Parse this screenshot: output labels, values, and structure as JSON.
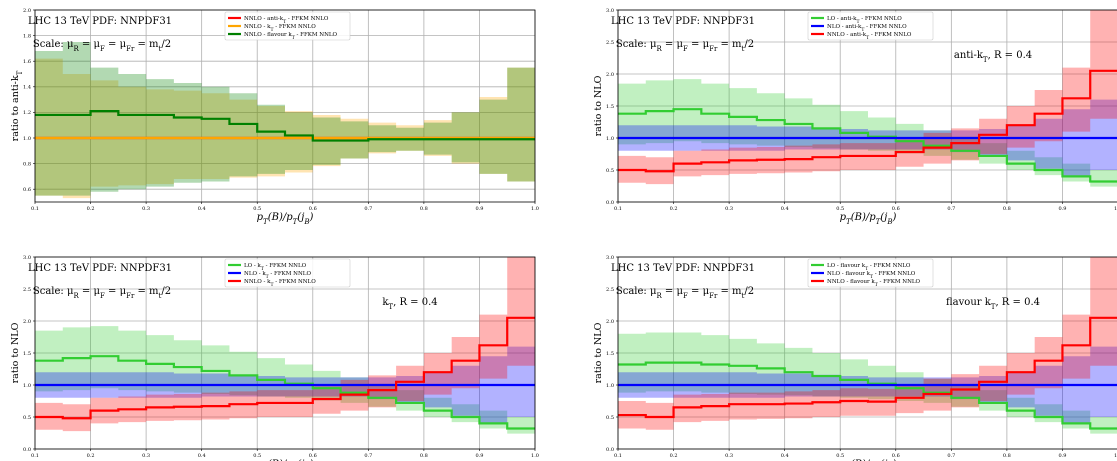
{
  "chart_data": [
    {
      "type": "line",
      "panel": "top-left",
      "xlabel": "p_T(B)/p_T(j_B)",
      "ylabel": "ratio to anti-k_T",
      "xlim": [
        0.1,
        1.0
      ],
      "ylim": [
        0.5,
        2.0
      ],
      "xticks": [
        "0.1",
        "0.2",
        "0.3",
        "0.4",
        "0.5",
        "0.6",
        "0.7",
        "0.8",
        "0.9",
        "1.0"
      ],
      "yticks": [
        "0.6",
        "0.8",
        "1.0",
        "1.2",
        "1.4",
        "1.6",
        "1.8",
        "2.0"
      ],
      "grid": true,
      "annotations": [
        "LHC 13 TeV PDF: NNPDF31",
        "Scale: μ_R = μ_F = μ_Fr = m_t/2"
      ],
      "legend_position": "top-center",
      "x_edges": [
        0.1,
        0.15,
        0.2,
        0.25,
        0.3,
        0.35,
        0.4,
        0.45,
        0.5,
        0.55,
        0.6,
        0.65,
        0.7,
        0.75,
        0.8,
        0.85,
        0.9,
        0.95,
        1.0
      ],
      "series": [
        {
          "name": "NNLO - anti-k_T - FFKM NNLO",
          "color": "#ff0000",
          "values": [
            1.0,
            1.0,
            1.0,
            1.0,
            1.0,
            1.0,
            1.0,
            1.0,
            1.0,
            1.0,
            1.0,
            1.0,
            1.0,
            1.0,
            1.0,
            1.0,
            1.0,
            1.0
          ],
          "lower": [
            1.0,
            1.0,
            1.0,
            1.0,
            1.0,
            1.0,
            1.0,
            1.0,
            1.0,
            1.0,
            1.0,
            1.0,
            1.0,
            1.0,
            1.0,
            1.0,
            1.0,
            1.0
          ],
          "upper": [
            1.0,
            1.0,
            1.0,
            1.0,
            1.0,
            1.0,
            1.0,
            1.0,
            1.0,
            1.0,
            1.0,
            1.0,
            1.0,
            1.0,
            1.0,
            1.0,
            1.0,
            1.0
          ]
        },
        {
          "name": "NNLO - k_T - FFKM NNLO",
          "color": "#ffa500",
          "values": [
            1.0,
            1.0,
            1.0,
            1.0,
            1.0,
            1.0,
            1.0,
            1.0,
            1.0,
            1.0,
            1.0,
            1.0,
            1.0,
            1.0,
            1.0,
            1.0,
            1.0,
            1.0
          ],
          "lower": [
            0.55,
            0.53,
            0.62,
            0.63,
            0.64,
            0.68,
            0.68,
            0.69,
            0.7,
            0.73,
            0.78,
            0.84,
            0.88,
            0.9,
            0.86,
            0.8,
            0.72,
            0.66
          ],
          "upper": [
            1.62,
            1.5,
            1.45,
            1.4,
            1.38,
            1.37,
            1.35,
            1.3,
            1.25,
            1.21,
            1.18,
            1.15,
            1.12,
            1.1,
            1.14,
            1.2,
            1.32,
            1.55
          ]
        },
        {
          "name": "NNLO - flavour k_T - FFKM NNLO",
          "color": "#008000",
          "values": [
            1.18,
            1.18,
            1.21,
            1.18,
            1.18,
            1.16,
            1.15,
            1.11,
            1.05,
            1.02,
            0.98,
            0.98,
            0.99,
            0.99,
            0.99,
            0.99,
            0.99,
            0.99
          ],
          "lower": [
            0.55,
            0.55,
            0.58,
            0.6,
            0.62,
            0.65,
            0.66,
            0.7,
            0.72,
            0.75,
            0.79,
            0.84,
            0.89,
            0.9,
            0.87,
            0.81,
            0.72,
            0.66
          ],
          "upper": [
            1.68,
            1.75,
            1.55,
            1.5,
            1.46,
            1.43,
            1.4,
            1.35,
            1.26,
            1.2,
            1.16,
            1.13,
            1.1,
            1.08,
            1.12,
            1.2,
            1.3,
            1.55
          ]
        }
      ]
    },
    {
      "type": "line",
      "panel": "top-right",
      "xlabel": "p_T(B)/p_T(j_B)",
      "ylabel": "ratio to NLO",
      "xlim": [
        0.1,
        1.0
      ],
      "ylim": [
        0.0,
        3.0
      ],
      "xticks": [
        "0.1",
        "0.2",
        "0.3",
        "0.4",
        "0.5",
        "0.6",
        "0.7",
        "0.8",
        "0.9",
        "1.0"
      ],
      "yticks": [
        "0.0",
        "0.5",
        "1.0",
        "1.5",
        "2.0",
        "2.5",
        "3.0"
      ],
      "grid": true,
      "annotations": [
        "LHC 13 TeV PDF: NNPDF31",
        "Scale: μ_R = μ_F = μ_Fr = m_t/2",
        "anti-k_T, R = 0.4"
      ],
      "legend_position": "top-center",
      "x_edges": [
        0.1,
        0.15,
        0.2,
        0.25,
        0.3,
        0.35,
        0.4,
        0.45,
        0.5,
        0.55,
        0.6,
        0.65,
        0.7,
        0.75,
        0.8,
        0.85,
        0.9,
        0.95,
        1.0
      ],
      "series": [
        {
          "name": "LO - anti-k_T - FFKM NNLO",
          "color": "#32cd32",
          "values": [
            1.38,
            1.42,
            1.45,
            1.38,
            1.33,
            1.28,
            1.22,
            1.15,
            1.08,
            1.02,
            0.95,
            0.88,
            0.8,
            0.72,
            0.6,
            0.5,
            0.4,
            0.32
          ],
          "lower": [
            0.9,
            0.92,
            0.95,
            0.92,
            0.9,
            0.88,
            0.86,
            0.84,
            0.82,
            0.8,
            0.76,
            0.72,
            0.66,
            0.6,
            0.5,
            0.42,
            0.32,
            0.24
          ],
          "upper": [
            1.85,
            1.9,
            1.92,
            1.85,
            1.78,
            1.7,
            1.62,
            1.52,
            1.42,
            1.32,
            1.22,
            1.12,
            1.02,
            0.92,
            0.8,
            0.7,
            0.6,
            0.5
          ]
        },
        {
          "name": "NLO - anti-k_T - FFKM NNLO",
          "color": "#0000ff",
          "values": [
            1.0,
            1.0,
            1.0,
            1.0,
            1.0,
            1.0,
            1.0,
            1.0,
            1.0,
            1.0,
            1.0,
            1.0,
            1.0,
            1.0,
            1.0,
            1.0,
            1.0,
            1.0
          ],
          "lower": [
            0.8,
            0.8,
            0.8,
            0.8,
            0.8,
            0.8,
            0.82,
            0.82,
            0.82,
            0.82,
            0.82,
            0.82,
            0.78,
            0.72,
            0.65,
            0.52,
            0.4,
            0.5
          ],
          "upper": [
            1.2,
            1.2,
            1.2,
            1.2,
            1.2,
            1.18,
            1.18,
            1.16,
            1.14,
            1.12,
            1.12,
            1.12,
            1.12,
            1.14,
            1.2,
            1.3,
            1.45,
            1.6
          ]
        },
        {
          "name": "NNLO - anti-k_T - FFKM NNLO",
          "color": "#ff0000",
          "values": [
            0.5,
            0.48,
            0.6,
            0.62,
            0.65,
            0.66,
            0.67,
            0.7,
            0.72,
            0.72,
            0.78,
            0.85,
            0.92,
            1.05,
            1.2,
            1.38,
            1.62,
            2.05
          ],
          "lower": [
            0.3,
            0.28,
            0.4,
            0.42,
            0.44,
            0.45,
            0.46,
            0.48,
            0.5,
            0.5,
            0.55,
            0.6,
            0.65,
            0.75,
            0.85,
            0.95,
            1.1,
            1.3
          ],
          "upper": [
            0.72,
            0.7,
            0.8,
            0.82,
            0.85,
            0.86,
            0.88,
            0.9,
            0.92,
            0.92,
            0.98,
            1.08,
            1.15,
            1.3,
            1.5,
            1.75,
            2.1,
            3.0
          ]
        }
      ]
    },
    {
      "type": "line",
      "panel": "bottom-left",
      "xlabel": "p_T(B)/p_T(j_B)",
      "ylabel": "ratio to NLO",
      "xlim": [
        0.1,
        1.0
      ],
      "ylim": [
        0.0,
        3.0
      ],
      "xticks": [
        "0.1",
        "0.2",
        "0.3",
        "0.4",
        "0.5",
        "0.6",
        "0.7",
        "0.8",
        "0.9",
        "1.0"
      ],
      "yticks": [
        "0.0",
        "0.5",
        "1.0",
        "1.5",
        "2.0",
        "2.5",
        "3.0"
      ],
      "grid": true,
      "annotations": [
        "LHC 13 TeV PDF: NNPDF31",
        "Scale: μ_R = μ_F = μ_Fr = m_t/2",
        "k_T, R = 0.4"
      ],
      "legend_position": "top-center",
      "x_edges": [
        0.1,
        0.15,
        0.2,
        0.25,
        0.3,
        0.35,
        0.4,
        0.45,
        0.5,
        0.55,
        0.6,
        0.65,
        0.7,
        0.75,
        0.8,
        0.85,
        0.9,
        0.95,
        1.0
      ],
      "series": [
        {
          "name": "LO - k_T - FFKM NNLO",
          "color": "#32cd32",
          "values": [
            1.38,
            1.42,
            1.45,
            1.38,
            1.33,
            1.28,
            1.22,
            1.15,
            1.08,
            1.02,
            0.95,
            0.88,
            0.8,
            0.72,
            0.6,
            0.5,
            0.4,
            0.32
          ],
          "lower": [
            0.9,
            0.92,
            0.95,
            0.92,
            0.9,
            0.88,
            0.86,
            0.84,
            0.82,
            0.8,
            0.76,
            0.72,
            0.66,
            0.6,
            0.5,
            0.42,
            0.32,
            0.24
          ],
          "upper": [
            1.85,
            1.9,
            1.92,
            1.85,
            1.78,
            1.7,
            1.62,
            1.52,
            1.42,
            1.32,
            1.22,
            1.12,
            1.02,
            0.92,
            0.8,
            0.7,
            0.6,
            0.5
          ]
        },
        {
          "name": "NLO - k_T - FFKM NNLO",
          "color": "#0000ff",
          "values": [
            1.0,
            1.0,
            1.0,
            1.0,
            1.0,
            1.0,
            1.0,
            1.0,
            1.0,
            1.0,
            1.0,
            1.0,
            1.0,
            1.0,
            1.0,
            1.0,
            1.0,
            1.0
          ],
          "lower": [
            0.8,
            0.8,
            0.8,
            0.8,
            0.8,
            0.8,
            0.82,
            0.82,
            0.82,
            0.82,
            0.82,
            0.82,
            0.78,
            0.72,
            0.65,
            0.52,
            0.4,
            0.5
          ],
          "upper": [
            1.2,
            1.2,
            1.2,
            1.2,
            1.2,
            1.18,
            1.18,
            1.16,
            1.14,
            1.12,
            1.12,
            1.12,
            1.12,
            1.14,
            1.2,
            1.3,
            1.45,
            1.6
          ]
        },
        {
          "name": "NNLO - k_T - FFKM NNLO",
          "color": "#ff0000",
          "values": [
            0.5,
            0.48,
            0.6,
            0.62,
            0.65,
            0.66,
            0.67,
            0.7,
            0.72,
            0.72,
            0.78,
            0.85,
            0.92,
            1.05,
            1.2,
            1.38,
            1.62,
            2.05
          ],
          "lower": [
            0.3,
            0.28,
            0.4,
            0.42,
            0.44,
            0.45,
            0.46,
            0.48,
            0.5,
            0.5,
            0.55,
            0.6,
            0.65,
            0.75,
            0.85,
            0.95,
            1.1,
            1.3
          ],
          "upper": [
            0.72,
            0.7,
            0.8,
            0.82,
            0.85,
            0.86,
            0.88,
            0.9,
            0.92,
            0.92,
            0.98,
            1.08,
            1.15,
            1.3,
            1.5,
            1.75,
            2.1,
            3.0
          ]
        }
      ]
    },
    {
      "type": "line",
      "panel": "bottom-right",
      "xlabel": "p_T(B)/p_T(j_B)",
      "ylabel": "ratio to NLO",
      "xlim": [
        0.1,
        1.0
      ],
      "ylim": [
        0.0,
        3.0
      ],
      "xticks": [
        "0.1",
        "0.2",
        "0.3",
        "0.4",
        "0.5",
        "0.6",
        "0.7",
        "0.8",
        "0.9",
        "1.0"
      ],
      "yticks": [
        "0.0",
        "0.5",
        "1.0",
        "1.5",
        "2.0",
        "2.5",
        "3.0"
      ],
      "grid": true,
      "annotations": [
        "LHC 13 TeV PDF: NNPDF31",
        "Scale: μ_R = μ_F = μ_Fr = m_t/2",
        "flavour k_T, R = 0.4"
      ],
      "legend_position": "top-center",
      "x_edges": [
        0.1,
        0.15,
        0.2,
        0.25,
        0.3,
        0.35,
        0.4,
        0.45,
        0.5,
        0.55,
        0.6,
        0.65,
        0.7,
        0.75,
        0.8,
        0.85,
        0.9,
        0.95,
        1.0
      ],
      "series": [
        {
          "name": "LO - flavour k_T - FFKM NNLO",
          "color": "#32cd32",
          "values": [
            1.32,
            1.35,
            1.35,
            1.32,
            1.3,
            1.26,
            1.2,
            1.14,
            1.08,
            1.02,
            0.95,
            0.88,
            0.8,
            0.72,
            0.6,
            0.5,
            0.4,
            0.32
          ],
          "lower": [
            0.88,
            0.9,
            0.9,
            0.88,
            0.86,
            0.85,
            0.84,
            0.82,
            0.8,
            0.78,
            0.75,
            0.72,
            0.66,
            0.6,
            0.5,
            0.42,
            0.32,
            0.24
          ],
          "upper": [
            1.8,
            1.82,
            1.82,
            1.78,
            1.72,
            1.65,
            1.58,
            1.5,
            1.4,
            1.3,
            1.2,
            1.1,
            1.0,
            0.92,
            0.8,
            0.7,
            0.6,
            0.5
          ]
        },
        {
          "name": "NLO - flavour k_T - FFKM NNLO",
          "color": "#0000ff",
          "values": [
            1.0,
            1.0,
            1.0,
            1.0,
            1.0,
            1.0,
            1.0,
            1.0,
            1.0,
            1.0,
            1.0,
            1.0,
            1.0,
            1.0,
            1.0,
            1.0,
            1.0,
            1.0
          ],
          "lower": [
            0.8,
            0.8,
            0.8,
            0.8,
            0.8,
            0.8,
            0.82,
            0.82,
            0.82,
            0.82,
            0.82,
            0.82,
            0.78,
            0.72,
            0.65,
            0.52,
            0.4,
            0.5
          ],
          "upper": [
            1.2,
            1.2,
            1.2,
            1.2,
            1.2,
            1.18,
            1.18,
            1.16,
            1.14,
            1.12,
            1.12,
            1.12,
            1.12,
            1.14,
            1.2,
            1.3,
            1.45,
            1.6
          ]
        },
        {
          "name": "NNLO - flavour k_T - FFKM NNLO",
          "color": "#ff0000",
          "values": [
            0.53,
            0.5,
            0.65,
            0.67,
            0.7,
            0.7,
            0.71,
            0.73,
            0.75,
            0.74,
            0.8,
            0.86,
            0.93,
            1.05,
            1.2,
            1.38,
            1.62,
            2.05
          ],
          "lower": [
            0.32,
            0.3,
            0.42,
            0.44,
            0.46,
            0.47,
            0.48,
            0.5,
            0.52,
            0.52,
            0.56,
            0.6,
            0.65,
            0.75,
            0.85,
            0.95,
            1.1,
            1.3
          ],
          "upper": [
            0.75,
            0.72,
            0.85,
            0.86,
            0.88,
            0.88,
            0.9,
            0.92,
            0.95,
            0.94,
            1.0,
            1.1,
            1.17,
            1.3,
            1.5,
            1.75,
            2.1,
            3.0
          ]
        }
      ]
    }
  ]
}
